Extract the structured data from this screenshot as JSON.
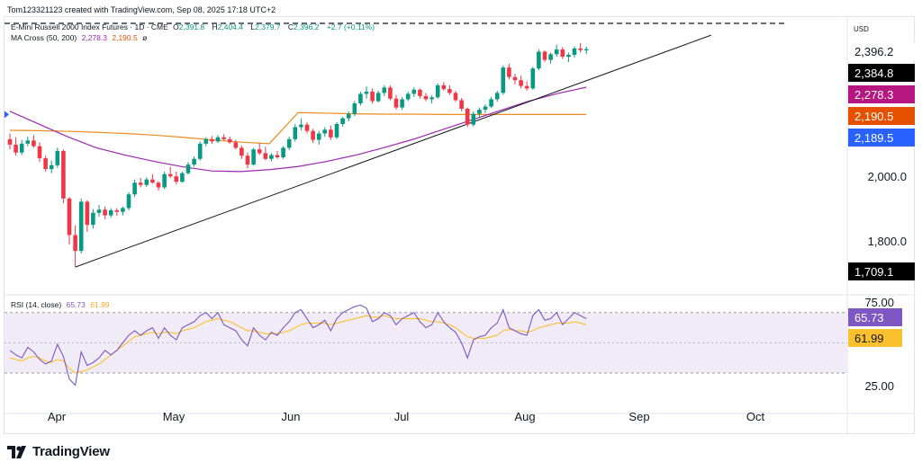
{
  "header": {
    "credit": "Tom123321123 created with TradingView.com, Sep 08, 2025 17:18 UTC+2"
  },
  "legend": {
    "symbol": "E-Mini Russell 2000 Index Futures · 1D · CME",
    "ohlc": [
      {
        "label": "O",
        "value": "2,391.8"
      },
      {
        "label": "H",
        "value": "2,404.4"
      },
      {
        "label": "L",
        "value": "2,379.7"
      },
      {
        "label": "C",
        "value": "2,396.2"
      }
    ],
    "change": "+2.7 (+0.11%)",
    "ma_label": "MA Cross (50, 200)",
    "ma50_value": "2,278.3",
    "ma200_value": "2,190.5",
    "ma_suffix": "ø",
    "rsi_label": "RSI (14, close)",
    "rsi_value": "65.73",
    "rsi_ma_value": "61.99"
  },
  "footer": {
    "brand": "TradingView"
  },
  "chart_data": {
    "type": "candlestick",
    "currency": "USD",
    "x_labels": [
      "Apr",
      "May",
      "Jun",
      "Jul",
      "Aug",
      "Sep",
      "Oct"
    ],
    "y_ticks": [
      "2,000.0",
      "1,800.0"
    ],
    "price_badges": [
      {
        "value": "2,396.2",
        "bg": "#ffffff",
        "fg": "#131722"
      },
      {
        "value": "2,384.8",
        "bg": "#000000",
        "fg": "#ffffff"
      },
      {
        "value": "2,278.3",
        "bg": "#b5167f",
        "fg": "#ffffff"
      },
      {
        "value": "2,190.5",
        "bg": "#e65100",
        "fg": "#ffffff"
      },
      {
        "value": "2,189.5",
        "bg": "#2962ff",
        "fg": "#ffffff"
      },
      {
        "value": "1,709.1",
        "bg": "#000000",
        "fg": "#ffffff"
      }
    ],
    "colors": {
      "up": "#089981",
      "down": "#f23645",
      "ma50": "#9c27b0",
      "ma200": "#ef8a1f",
      "rsi": "#7e57c2",
      "rsi_ma": "#fbc02d",
      "trendline": "#131722"
    },
    "ylim": [
      1630,
      2480
    ],
    "candles": [
      [
        2112,
        2130,
        2080,
        2095
      ],
      [
        2095,
        2118,
        2060,
        2070
      ],
      [
        2070,
        2110,
        2062,
        2098
      ],
      [
        2098,
        2120,
        2090,
        2108
      ],
      [
        2108,
        2125,
        2085,
        2090
      ],
      [
        2090,
        2102,
        2040,
        2052
      ],
      [
        2052,
        2060,
        2010,
        2018
      ],
      [
        2018,
        2045,
        2005,
        2030
      ],
      [
        2030,
        2085,
        2022,
        2075
      ],
      [
        2075,
        2080,
        1910,
        1925
      ],
      [
        1925,
        1930,
        1780,
        1810
      ],
      [
        1810,
        1840,
        1709,
        1760
      ],
      [
        1760,
        1925,
        1752,
        1915
      ],
      [
        1915,
        1920,
        1820,
        1842
      ],
      [
        1842,
        1892,
        1830,
        1880
      ],
      [
        1880,
        1905,
        1868,
        1890
      ],
      [
        1890,
        1900,
        1860,
        1872
      ],
      [
        1872,
        1895,
        1865,
        1888
      ],
      [
        1888,
        1895,
        1870,
        1883
      ],
      [
        1883,
        1900,
        1872,
        1895
      ],
      [
        1895,
        1945,
        1888,
        1938
      ],
      [
        1938,
        1985,
        1930,
        1975
      ],
      [
        1975,
        1990,
        1960,
        1968
      ],
      [
        1968,
        1992,
        1962,
        1985
      ],
      [
        1985,
        2002,
        1972,
        1975
      ],
      [
        1975,
        1980,
        1950,
        1960
      ],
      [
        1960,
        2010,
        1955,
        2002
      ],
      [
        2002,
        2025,
        1990,
        1995
      ],
      [
        1995,
        2010,
        1970,
        1978
      ],
      [
        1978,
        2010,
        1975,
        2005
      ],
      [
        2005,
        2040,
        2000,
        2032
      ],
      [
        2032,
        2058,
        2025,
        2050
      ],
      [
        2050,
        2105,
        2045,
        2098
      ],
      [
        2098,
        2118,
        2090,
        2112
      ],
      [
        2112,
        2122,
        2098,
        2105
      ],
      [
        2105,
        2125,
        2100,
        2118
      ],
      [
        2118,
        2128,
        2108,
        2112
      ],
      [
        2112,
        2120,
        2098,
        2102
      ],
      [
        2102,
        2110,
        2080,
        2085
      ],
      [
        2085,
        2092,
        2050,
        2060
      ],
      [
        2060,
        2070,
        2020,
        2032
      ],
      [
        2032,
        2085,
        2028,
        2080
      ],
      [
        2080,
        2100,
        2062,
        2068
      ],
      [
        2068,
        2088,
        2045,
        2050
      ],
      [
        2050,
        2068,
        2042,
        2062
      ],
      [
        2062,
        2075,
        2050,
        2055
      ],
      [
        2055,
        2090,
        2050,
        2085
      ],
      [
        2085,
        2120,
        2078,
        2112
      ],
      [
        2112,
        2160,
        2105,
        2150
      ],
      [
        2150,
        2178,
        2140,
        2158
      ],
      [
        2158,
        2165,
        2130,
        2138
      ],
      [
        2138,
        2145,
        2100,
        2110
      ],
      [
        2110,
        2138,
        2095,
        2130
      ],
      [
        2130,
        2150,
        2120,
        2142
      ],
      [
        2142,
        2155,
        2110,
        2118
      ],
      [
        2118,
        2165,
        2112,
        2160
      ],
      [
        2160,
        2182,
        2152,
        2178
      ],
      [
        2178,
        2200,
        2168,
        2192
      ],
      [
        2192,
        2232,
        2185,
        2225
      ],
      [
        2225,
        2262,
        2218,
        2255
      ],
      [
        2255,
        2278,
        2240,
        2262
      ],
      [
        2262,
        2272,
        2225,
        2232
      ],
      [
        2232,
        2265,
        2228,
        2258
      ],
      [
        2258,
        2282,
        2248,
        2275
      ],
      [
        2275,
        2282,
        2235,
        2240
      ],
      [
        2240,
        2252,
        2205,
        2212
      ],
      [
        2212,
        2245,
        2205,
        2238
      ],
      [
        2238,
        2262,
        2232,
        2255
      ],
      [
        2255,
        2275,
        2245,
        2268
      ],
      [
        2268,
        2272,
        2240,
        2248
      ],
      [
        2248,
        2258,
        2232,
        2238
      ],
      [
        2238,
        2250,
        2225,
        2244
      ],
      [
        2244,
        2288,
        2240,
        2282
      ],
      [
        2282,
        2292,
        2265,
        2270
      ],
      [
        2270,
        2282,
        2252,
        2258
      ],
      [
        2258,
        2265,
        2230,
        2235
      ],
      [
        2235,
        2242,
        2200,
        2208
      ],
      [
        2208,
        2212,
        2150,
        2158
      ],
      [
        2158,
        2200,
        2152,
        2192
      ],
      [
        2192,
        2212,
        2180,
        2205
      ],
      [
        2205,
        2222,
        2195,
        2215
      ],
      [
        2215,
        2245,
        2210,
        2238
      ],
      [
        2238,
        2265,
        2230,
        2258
      ],
      [
        2258,
        2345,
        2252,
        2338
      ],
      [
        2338,
        2350,
        2300,
        2308
      ],
      [
        2308,
        2318,
        2285,
        2298
      ],
      [
        2298,
        2312,
        2272,
        2280
      ],
      [
        2280,
        2295,
        2265,
        2272
      ],
      [
        2272,
        2340,
        2268,
        2335
      ],
      [
        2335,
        2395,
        2330,
        2388
      ],
      [
        2388,
        2392,
        2355,
        2362
      ],
      [
        2362,
        2385,
        2350,
        2380
      ],
      [
        2380,
        2410,
        2372,
        2395
      ],
      [
        2395,
        2402,
        2365,
        2372
      ],
      [
        2372,
        2385,
        2355,
        2378
      ],
      [
        2378,
        2405,
        2370,
        2398
      ],
      [
        2398,
        2415,
        2385,
        2393
      ],
      [
        2392,
        2404,
        2380,
        2396
      ]
    ],
    "ma50": [
      2200,
      2160,
      2120,
      2085,
      2062,
      2042,
      2025,
      2012,
      2010,
      2016,
      2026,
      2042,
      2062,
      2086,
      2112,
      2142,
      2172,
      2202,
      2232,
      2256,
      2276
    ],
    "ma200": [
      2140,
      2139,
      2137,
      2134,
      2130,
      2125,
      2118,
      2110,
      2103,
      2098,
      2196,
      2194,
      2192,
      2191,
      2191,
      2190,
      2190,
      2190,
      2190,
      2190,
      2190
    ],
    "trendline": {
      "from": [
        11,
        1709
      ],
      "to": [
        118,
        2440
      ]
    },
    "rsi_ylim": [
      5,
      80
    ],
    "rsi_ticks": [
      "75.00",
      "25.00"
    ],
    "rsi_band": [
      30,
      70
    ],
    "rsi_badges": [
      {
        "value": "65.73",
        "bg": "#7e57c2",
        "fg": "#ffffff"
      },
      {
        "value": "61.99",
        "bg": "#fbc02d",
        "fg": "#131722"
      }
    ],
    "rsi": [
      45,
      42,
      40,
      47,
      44,
      39,
      36,
      38,
      49,
      41,
      26,
      22,
      44,
      35,
      37,
      40,
      45,
      42,
      45,
      50,
      55,
      58,
      55,
      58,
      60,
      53,
      60,
      55,
      52,
      60,
      62,
      64,
      68,
      70,
      66,
      70,
      62,
      60,
      58,
      52,
      48,
      60,
      55,
      52,
      57,
      55,
      60,
      64,
      70,
      72,
      66,
      60,
      62,
      65,
      58,
      66,
      70,
      72,
      74,
      75,
      73,
      64,
      66,
      70,
      68,
      62,
      66,
      68,
      70,
      64,
      60,
      62,
      70,
      64,
      60,
      57,
      50,
      40,
      52,
      54,
      55,
      60,
      63,
      72,
      60,
      58,
      56,
      55,
      68,
      72,
      65,
      66,
      70,
      62,
      66,
      70,
      68,
      66
    ],
    "rsi_ma": [
      40,
      39,
      38,
      40,
      41,
      40,
      38,
      37,
      39,
      38,
      33,
      30,
      31,
      32,
      34,
      36,
      39,
      42,
      45,
      48,
      51,
      54,
      55,
      56,
      57,
      56,
      57,
      57,
      56,
      58,
      59,
      60,
      62,
      64,
      65,
      66,
      65,
      64,
      62,
      60,
      58,
      58,
      57,
      56,
      56,
      56,
      57,
      58,
      60,
      62,
      63,
      63,
      63,
      63,
      62,
      63,
      64,
      65,
      66,
      67,
      68,
      67,
      67,
      68,
      67,
      66,
      66,
      66,
      66,
      66,
      65,
      64,
      64,
      63,
      62,
      60,
      57,
      54,
      53,
      53,
      53,
      54,
      55,
      58,
      59,
      58,
      58,
      57,
      58,
      60,
      61,
      62,
      63,
      63,
      63,
      64,
      63,
      62
    ]
  }
}
